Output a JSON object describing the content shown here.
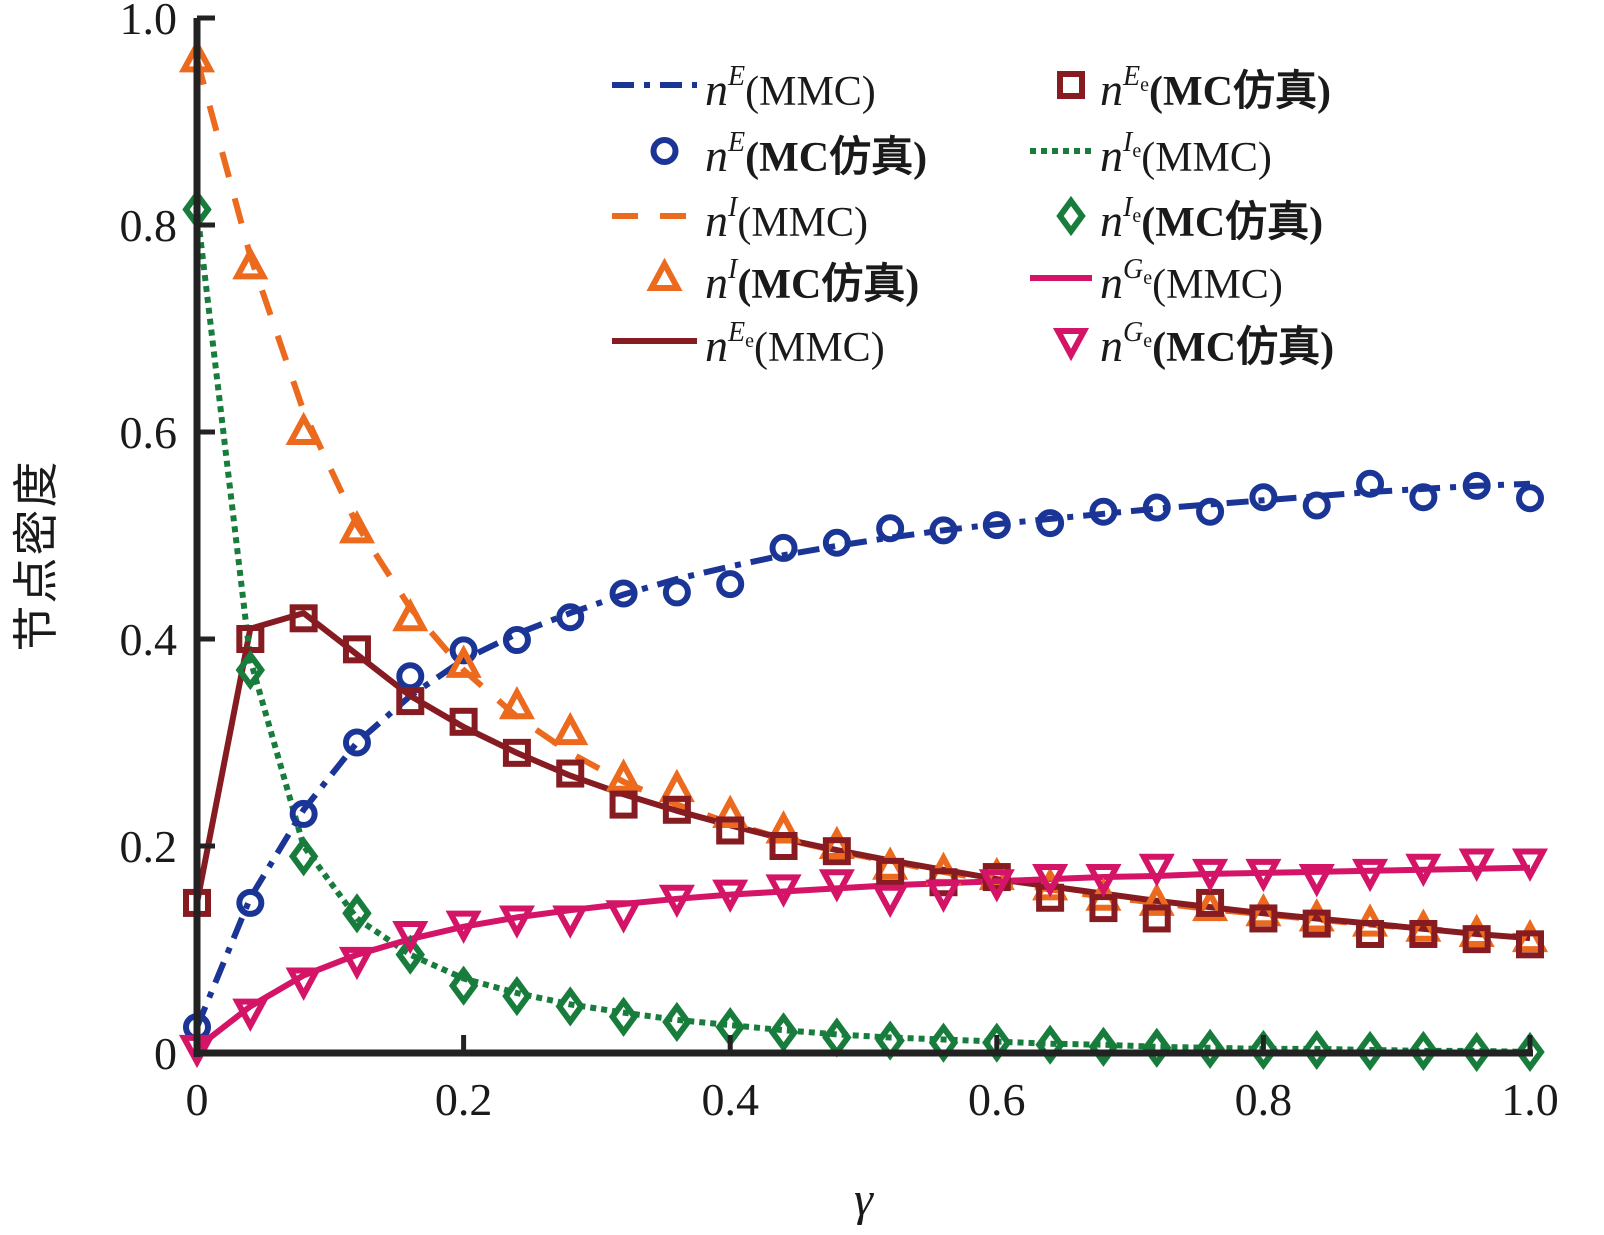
{
  "chart_data": {
    "type": "line",
    "title": "",
    "xlabel": "γ",
    "ylabel": "节点密度",
    "xlim": [
      0,
      1.0
    ],
    "ylim": [
      0,
      1.0
    ],
    "xticks": [
      0,
      0.2,
      0.4,
      0.6,
      0.8,
      1.0
    ],
    "xtick_labels": [
      "0",
      "0.2",
      "0.4",
      "0.6",
      "0.8",
      "1.0"
    ],
    "yticks": [
      0,
      0.2,
      0.4,
      0.6,
      0.8,
      1.0
    ],
    "ytick_labels": [
      "0",
      "0.2",
      "0.4",
      "0.6",
      "0.8",
      "1.0"
    ],
    "grid": false,
    "legend_position": "top-right",
    "x": [
      0,
      0.04,
      0.08,
      0.12,
      0.16,
      0.2,
      0.24,
      0.28,
      0.32,
      0.36,
      0.4,
      0.44,
      0.48,
      0.52,
      0.56,
      0.6,
      0.64,
      0.68,
      0.72,
      0.76,
      0.8,
      0.84,
      0.88,
      0.92,
      0.96,
      1.0
    ],
    "series": [
      {
        "name": "n^E(MMC)",
        "base": "n",
        "sup": "E",
        "sub": "",
        "suffix": "(MMC)",
        "bold": false,
        "kind": "line",
        "style": "dashdot",
        "color": "#1a3596",
        "values": [
          0.025,
          0.15,
          0.235,
          0.3,
          0.345,
          0.38,
          0.405,
          0.425,
          0.443,
          0.458,
          0.47,
          0.481,
          0.49,
          0.498,
          0.505,
          0.511,
          0.516,
          0.521,
          0.526,
          0.53,
          0.534,
          0.538,
          0.542,
          0.545,
          0.548,
          0.55
        ]
      },
      {
        "name": "n^E(MC仿真)",
        "base": "n",
        "sup": "E",
        "sub": "",
        "suffix": "(MC仿真)",
        "bold": true,
        "kind": "marker",
        "marker": "circle",
        "color": "#1a3596",
        "values": [
          0.025,
          0.145,
          0.231,
          0.3,
          0.364,
          0.389,
          0.399,
          0.421,
          0.444,
          0.445,
          0.453,
          0.488,
          0.493,
          0.507,
          0.505,
          0.51,
          0.512,
          0.523,
          0.527,
          0.523,
          0.537,
          0.529,
          0.55,
          0.537,
          0.548,
          0.536
        ]
      },
      {
        "name": "n^I(MMC)",
        "base": "n",
        "sup": "I",
        "sub": "",
        "suffix": "(MMC)",
        "bold": false,
        "kind": "line",
        "style": "dash",
        "color": "#ec6a1e",
        "values": [
          0.96,
          0.77,
          0.62,
          0.51,
          0.43,
          0.37,
          0.325,
          0.29,
          0.262,
          0.24,
          0.222,
          0.207,
          0.195,
          0.185,
          0.175,
          0.166,
          0.158,
          0.151,
          0.145,
          0.139,
          0.134,
          0.129,
          0.124,
          0.12,
          0.116,
          0.112
        ]
      },
      {
        "name": "n^I(MC仿真)",
        "base": "n",
        "sup": "I",
        "sub": "",
        "suffix": "(MC仿真)",
        "bold": true,
        "kind": "marker",
        "marker": "triangle-up",
        "color": "#ec6a1e",
        "values": [
          0.96,
          0.76,
          0.6,
          0.505,
          0.42,
          0.375,
          0.335,
          0.31,
          0.265,
          0.255,
          0.23,
          0.215,
          0.2,
          0.18,
          0.175,
          0.17,
          0.16,
          0.15,
          0.145,
          0.14,
          0.135,
          0.13,
          0.125,
          0.12,
          0.115,
          0.11
        ]
      },
      {
        "name": "n^Ee(MMC)",
        "base": "n",
        "sup": "E",
        "sub": "e",
        "suffix": "(MMC)",
        "bold": false,
        "kind": "line",
        "style": "solid",
        "color": "#861c22",
        "values": [
          0.145,
          0.41,
          0.425,
          0.385,
          0.345,
          0.315,
          0.29,
          0.268,
          0.25,
          0.234,
          0.22,
          0.207,
          0.196,
          0.186,
          0.177,
          0.168,
          0.161,
          0.154,
          0.147,
          0.141,
          0.135,
          0.13,
          0.125,
          0.12,
          0.115,
          0.111
        ]
      },
      {
        "name": "n^Ee(MC仿真)",
        "base": "n",
        "sup": "E",
        "sub": "e",
        "suffix": "(MC仿真)",
        "bold": true,
        "kind": "marker",
        "marker": "square",
        "color": "#861c22",
        "values": [
          0.145,
          0.4,
          0.42,
          0.39,
          0.34,
          0.32,
          0.29,
          0.27,
          0.24,
          0.235,
          0.215,
          0.2,
          0.195,
          0.175,
          0.165,
          0.17,
          0.15,
          0.14,
          0.13,
          0.145,
          0.13,
          0.125,
          0.115,
          0.115,
          0.11,
          0.105
        ]
      },
      {
        "name": "n^Ie(MMC)",
        "base": "n",
        "sup": "I",
        "sub": "e",
        "suffix": "(MMC)",
        "bold": false,
        "kind": "line",
        "style": "dot",
        "color": "#187d3c",
        "values": [
          0.815,
          0.38,
          0.2,
          0.13,
          0.095,
          0.072,
          0.058,
          0.047,
          0.039,
          0.032,
          0.027,
          0.022,
          0.018,
          0.015,
          0.013,
          0.011,
          0.009,
          0.008,
          0.006,
          0.005,
          0.004,
          0.004,
          0.003,
          0.002,
          0.002,
          0.001
        ]
      },
      {
        "name": "n^Ie(MC仿真)",
        "base": "n",
        "sup": "I",
        "sub": "e",
        "suffix": "(MC仿真)",
        "bold": true,
        "kind": "marker",
        "marker": "diamond",
        "color": "#187d3c",
        "values": [
          0.815,
          0.37,
          0.19,
          0.135,
          0.095,
          0.065,
          0.055,
          0.045,
          0.035,
          0.03,
          0.025,
          0.02,
          0.015,
          0.012,
          0.01,
          0.01,
          0.008,
          0.006,
          0.005,
          0.004,
          0.003,
          0.003,
          0.002,
          0.002,
          0.001,
          0.001
        ]
      },
      {
        "name": "n^Ge(MMC)",
        "base": "n",
        "sup": "G",
        "sub": "e",
        "suffix": "(MMC)",
        "bold": false,
        "kind": "line",
        "style": "solid",
        "color": "#d31467",
        "values": [
          0.005,
          0.045,
          0.075,
          0.095,
          0.11,
          0.122,
          0.131,
          0.138,
          0.144,
          0.149,
          0.153,
          0.156,
          0.159,
          0.162,
          0.164,
          0.166,
          0.168,
          0.17,
          0.171,
          0.173,
          0.174,
          0.175,
          0.176,
          0.177,
          0.178,
          0.179
        ]
      },
      {
        "name": "n^Ge(MC仿真)",
        "base": "n",
        "sup": "G",
        "sub": "e",
        "suffix": "(MC仿真)",
        "bold": true,
        "kind": "marker",
        "marker": "triangle-down",
        "color": "#d31467",
        "values": [
          0.005,
          0.04,
          0.07,
          0.09,
          0.115,
          0.125,
          0.13,
          0.13,
          0.135,
          0.15,
          0.155,
          0.16,
          0.165,
          0.15,
          0.155,
          0.165,
          0.17,
          0.17,
          0.18,
          0.175,
          0.175,
          0.17,
          0.175,
          0.18,
          0.185,
          0.185
        ]
      }
    ],
    "legend_order": [
      [
        "n^E(MMC)",
        "n^E(MC仿真)",
        "n^I(MMC)",
        "n^I(MC仿真)",
        "n^Ee(MMC)"
      ],
      [
        "n^Ee(MC仿真)",
        "n^Ie(MMC)",
        "n^Ie(MC仿真)",
        "n^Ge(MMC)",
        "n^Ge(MC仿真)"
      ]
    ]
  }
}
